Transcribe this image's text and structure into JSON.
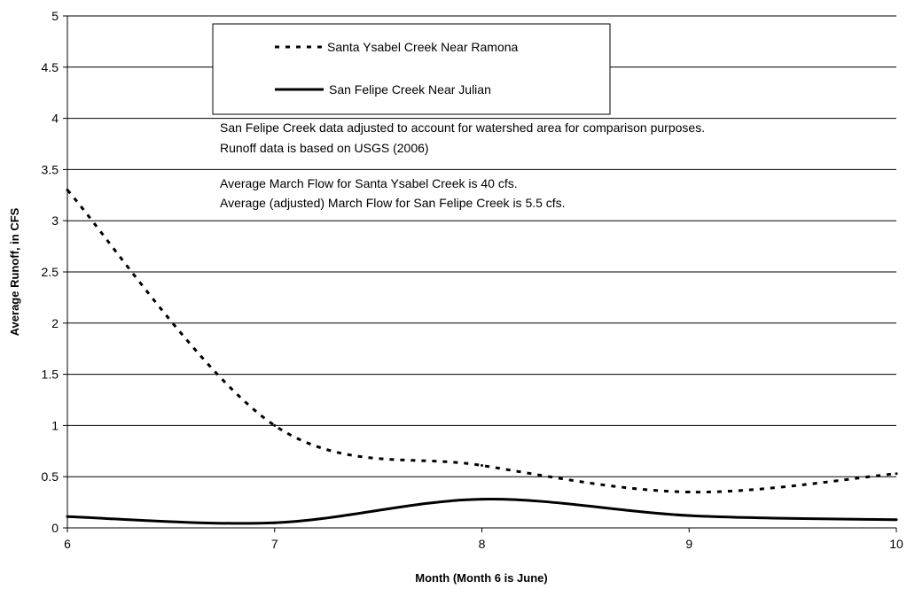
{
  "chart_data": {
    "type": "line",
    "title": "",
    "xlabel": "Month (Month 6 is June)",
    "ylabel": "Average Runoff, in CFS",
    "xlim": [
      6,
      10
    ],
    "ylim": [
      0,
      5
    ],
    "xticks": [
      6,
      7,
      8,
      9,
      10
    ],
    "xtick_labels": [
      "6",
      "7",
      "8",
      "9",
      "10"
    ],
    "yticks": [
      0,
      0.5,
      1,
      1.5,
      2,
      2.5,
      3,
      3.5,
      4,
      4.5,
      5
    ],
    "ytick_labels": [
      "0",
      "0.5",
      "1",
      "1.5",
      "2",
      "2.5",
      "3",
      "3.5",
      "4",
      "4.5",
      "5"
    ],
    "grid": "horizontal",
    "legend_position": "top-center",
    "series": [
      {
        "name": "Santa Ysabel Creek Near Ramona",
        "style": "dashed",
        "color": "#000000",
        "x": [
          6,
          7,
          8,
          9,
          10
        ],
        "y": [
          3.3,
          1.0,
          0.61,
          0.35,
          0.53
        ]
      },
      {
        "name": "San Felipe Creek Near Julian",
        "style": "solid",
        "color": "#000000",
        "x": [
          6,
          7,
          8,
          9,
          10
        ],
        "y": [
          0.11,
          0.05,
          0.28,
          0.12,
          0.08
        ]
      }
    ],
    "annotations": [
      "San Felipe Creek data adjusted to account for watershed area for comparison purposes.",
      "Runoff data is based on USGS (2006)",
      "Average March Flow for Santa Ysabel Creek is 40 cfs.",
      "Average (adjusted) March Flow for San Felipe Creek is 5.5 cfs."
    ]
  }
}
